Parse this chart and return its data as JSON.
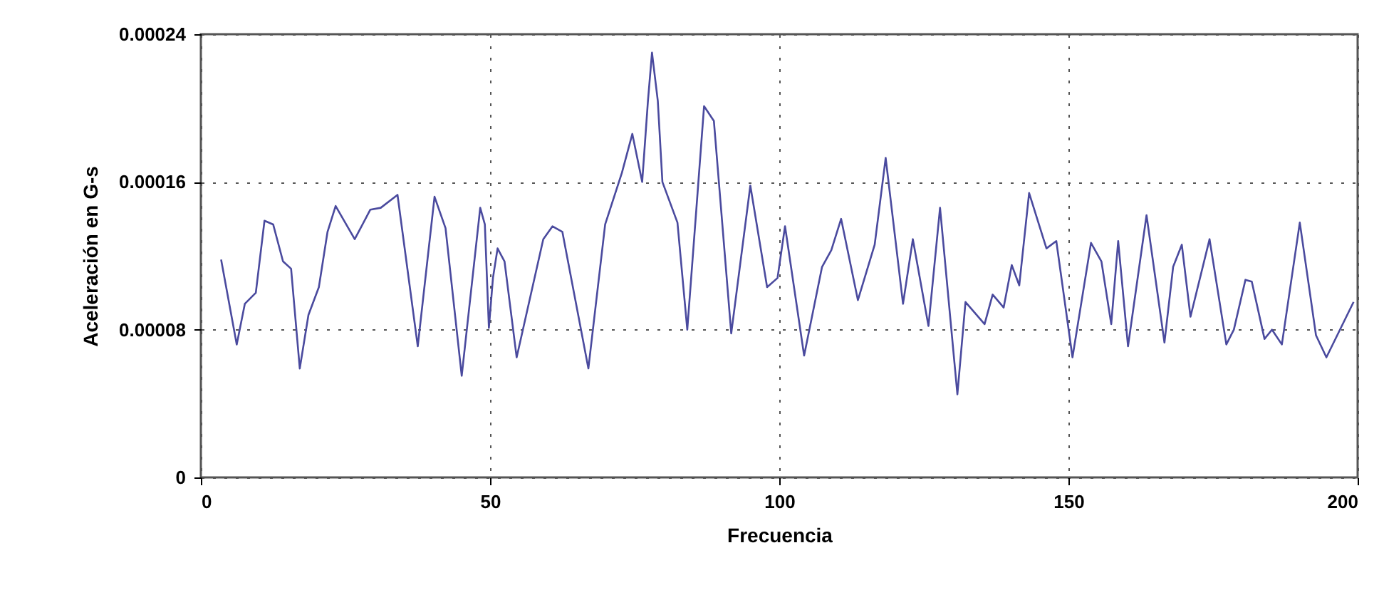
{
  "chart_data": {
    "type": "line",
    "xlabel": "Frecuencia",
    "ylabel": "Aceleración en G-s",
    "xlim": [
      0,
      200
    ],
    "xticks": [
      0,
      50,
      100,
      150,
      200
    ],
    "ylim": [
      0,
      0.00024
    ],
    "yticks": [
      0,
      {
        "value": 8e-05,
        "label": "0.00008"
      },
      {
        "value": 0.00016,
        "label": "0.00016"
      },
      {
        "value": 0.00024,
        "label": "0.00024"
      }
    ],
    "grid": true,
    "marker": "none",
    "line_style": "solid",
    "series": [
      {
        "color": "#4a4a9e",
        "x": [
          3.5,
          6.2,
          7.6,
          9.5,
          11,
          12.5,
          14.2,
          15.6,
          17.1,
          18.6,
          20.4,
          21.9,
          23.3,
          26.6,
          29.3,
          31.1,
          34,
          37.5,
          40.4,
          42.3,
          45.1,
          48.3,
          49.1,
          49.8,
          50.5,
          51.3,
          52.5,
          54.6,
          59.2,
          60.8,
          62.5,
          67,
          69.9,
          72.8,
          74.6,
          76.3,
          77.3,
          78,
          79,
          79.8,
          82.4,
          84.1,
          85.9,
          87,
          88.7,
          91.7,
          95,
          97.9,
          99.7,
          101,
          104.3,
          107.4,
          109,
          110.7,
          113.6,
          116.5,
          118.4,
          121.4,
          123.1,
          125.8,
          127.8,
          130.8,
          132.2,
          135.5,
          136.9,
          138.8,
          140.2,
          141.5,
          143.2,
          146.2,
          147.9,
          150.7,
          153.9,
          155.7,
          157.4,
          158.6,
          160.3,
          163.5,
          166.6,
          168.1,
          169.6,
          171.1,
          174.4,
          177.3,
          178.6,
          180.6,
          181.7,
          183.9,
          185.2,
          186.9,
          190,
          192.8,
          194.6,
          199.3
        ],
        "values": [
          0.000118,
          7.2e-05,
          9.4e-05,
          0.0001,
          0.000139,
          0.000137,
          0.000117,
          0.000113,
          5.9e-05,
          8.8e-05,
          0.000103,
          0.000133,
          0.000147,
          0.000129,
          0.000145,
          0.000146,
          0.000153,
          7.1e-05,
          0.000152,
          0.000135,
          5.5e-05,
          0.000146,
          0.000137,
          8.1e-05,
          0.000108,
          0.000124,
          0.000117,
          6.5e-05,
          0.000129,
          0.000136,
          0.000133,
          5.9e-05,
          0.000137,
          0.000165,
          0.000186,
          0.00016,
          0.000204,
          0.00023,
          0.000204,
          0.00016,
          0.000138,
          8e-05,
          0.000155,
          0.000201,
          0.000193,
          7.8e-05,
          0.000158,
          0.000103,
          0.000108,
          0.000136,
          6.6e-05,
          0.000114,
          0.000123,
          0.00014,
          9.6e-05,
          0.000126,
          0.000173,
          9.4e-05,
          0.000129,
          8.2e-05,
          0.000146,
          4.5e-05,
          9.5e-05,
          8.3e-05,
          9.9e-05,
          9.2e-05,
          0.000115,
          0.000104,
          0.000154,
          0.000124,
          0.000128,
          6.5e-05,
          0.000127,
          0.000117,
          8.3e-05,
          0.000128,
          7.1e-05,
          0.000142,
          7.3e-05,
          0.000114,
          0.000126,
          8.7e-05,
          0.000129,
          7.2e-05,
          8e-05,
          0.000107,
          0.000106,
          7.5e-05,
          8e-05,
          7.2e-05,
          0.000138,
          7.7e-05,
          6.5e-05,
          9.5e-05
        ]
      }
    ]
  }
}
